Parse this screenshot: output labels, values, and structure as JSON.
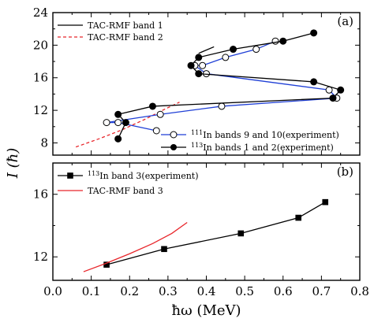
{
  "chart_data": [
    {
      "panel": "(a)",
      "type": "line",
      "xlim": [
        0.0,
        0.8
      ],
      "ylim": [
        6.5,
        24
      ],
      "yticks": [
        8,
        12,
        16,
        20,
        24
      ],
      "ylabel": "I (ħ)",
      "legend_top": "top-left",
      "legend_bottom": "bottom-right",
      "series": [
        {
          "name": "TAC-RMF band 1",
          "style": "solid",
          "color": "#000000",
          "marker": "none",
          "x": [
            0.38,
            0.42
          ],
          "y": [
            19.0,
            19.8
          ]
        },
        {
          "name": "TAC-RMF band 2",
          "style": "dashed",
          "color": "#e8262b",
          "marker": "none",
          "x": [
            0.06,
            0.12,
            0.18,
            0.24,
            0.29,
            0.33
          ],
          "y": [
            7.5,
            8.5,
            9.6,
            10.9,
            12.1,
            13.0
          ]
        },
        {
          "name": "111In bands 9 and 10(experiment)",
          "style": "solid",
          "color": "#1f3fd6",
          "marker": "open-circle",
          "x": [
            0.27,
            0.17,
            0.14,
            0.28,
            0.44,
            0.74,
            0.72,
            0.4,
            0.37,
            0.39,
            0.45,
            0.53,
            0.58
          ],
          "y": [
            9.5,
            10.5,
            10.5,
            11.5,
            12.5,
            13.5,
            14.5,
            16.5,
            17.5,
            17.5,
            18.5,
            19.5,
            20.5
          ]
        },
        {
          "name": "113In bands 1 and 2(experiment)",
          "style": "solid",
          "color": "#000000",
          "marker": "filled-circle",
          "x": [
            0.17,
            0.19,
            0.17,
            0.26,
            0.73,
            0.75,
            0.68,
            0.38,
            0.36,
            0.38,
            0.47,
            0.6,
            0.68
          ],
          "y": [
            8.5,
            10.5,
            11.5,
            12.5,
            13.5,
            14.5,
            15.5,
            16.5,
            17.5,
            18.5,
            19.5,
            20.5,
            21.5
          ]
        }
      ],
      "legend_top_entries": [
        {
          "label": "TAC-RMF band 1",
          "series": 0
        },
        {
          "label": "TAC-RMF band 2",
          "series": 1
        }
      ],
      "legend_bottom_entries": [
        {
          "sup": "111",
          "label": "In bands 9 and 10(experiment)",
          "series": 2
        },
        {
          "sup": "113",
          "label": "In bands 1 and 2(experiment)",
          "series": 3
        }
      ]
    },
    {
      "panel": "(b)",
      "type": "line",
      "xlim": [
        0.0,
        0.8
      ],
      "ylim": [
        10.5,
        18.0
      ],
      "yticks": [
        12,
        16
      ],
      "xticks": [
        0.0,
        0.1,
        0.2,
        0.3,
        0.4,
        0.5,
        0.6,
        0.7,
        0.8
      ],
      "xtick_labels": [
        "0.0",
        "0.1",
        "0.2",
        "0.3",
        "0.4",
        "0.5",
        "0.6",
        "0.7",
        "0.8"
      ],
      "xlabel": "ħω (MeV)",
      "legend": "top-left",
      "series": [
        {
          "name": "113In band 3(experiment)",
          "style": "solid",
          "color": "#000000",
          "marker": "filled-square",
          "x": [
            0.14,
            0.29,
            0.49,
            0.64,
            0.71
          ],
          "y": [
            11.5,
            12.5,
            13.5,
            14.5,
            15.5
          ]
        },
        {
          "name": "TAC-RMF band 3",
          "style": "solid",
          "color": "#e8262b",
          "marker": "none",
          "x": [
            0.08,
            0.14,
            0.2,
            0.26,
            0.31,
            0.35
          ],
          "y": [
            11.05,
            11.6,
            12.2,
            12.85,
            13.5,
            14.2
          ]
        }
      ],
      "legend_entries": [
        {
          "sup": "113",
          "label": "In band 3(experiment)",
          "series": 0
        },
        {
          "label": "TAC-RMF band 3",
          "series": 1
        }
      ]
    }
  ]
}
